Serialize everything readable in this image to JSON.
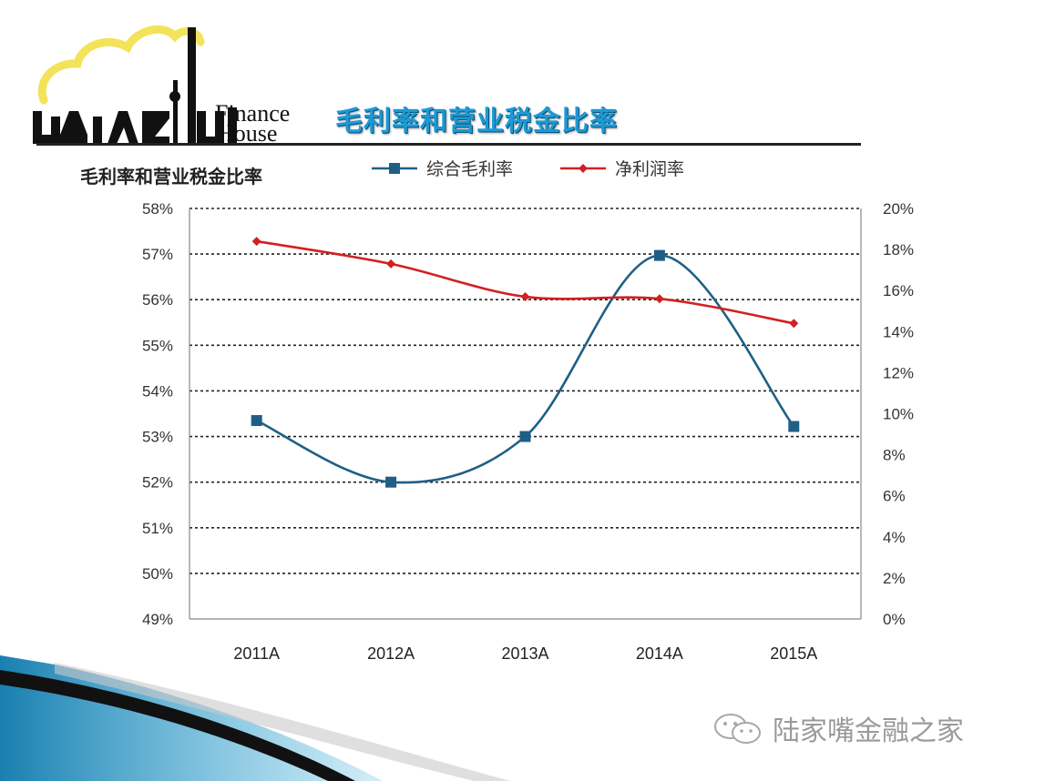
{
  "header": {
    "logo_finance": "Finance",
    "logo_house": "House",
    "slide_title": "毛利率和营业税金比率"
  },
  "chart_data": {
    "type": "line",
    "title": "毛利率和营业税金比率",
    "categories": [
      "2011A",
      "2012A",
      "2013A",
      "2014A",
      "2015A"
    ],
    "series": [
      {
        "name": "综合毛利率",
        "axis": "left",
        "color": "#1f5f86",
        "marker": "square",
        "values": [
          53.35,
          52.0,
          53.0,
          56.97,
          53.22
        ]
      },
      {
        "name": "净利润率",
        "axis": "right",
        "color": "#d42020",
        "marker": "diamond",
        "values": [
          18.4,
          17.3,
          15.7,
          15.6,
          14.4
        ]
      }
    ],
    "y_left": {
      "lim": [
        49,
        58
      ],
      "ticks": [
        "49%",
        "50%",
        "51%",
        "52%",
        "53%",
        "54%",
        "55%",
        "56%",
        "57%",
        "58%"
      ]
    },
    "y_right": {
      "lim": [
        0,
        20
      ],
      "ticks": [
        "0%",
        "2%",
        "4%",
        "6%",
        "8%",
        "10%",
        "12%",
        "14%",
        "16%",
        "18%",
        "20%"
      ]
    },
    "grid": true,
    "legend_position": "top"
  },
  "watermark": {
    "icon": "wechat-icon",
    "text": "陆家嘴金融之家"
  }
}
